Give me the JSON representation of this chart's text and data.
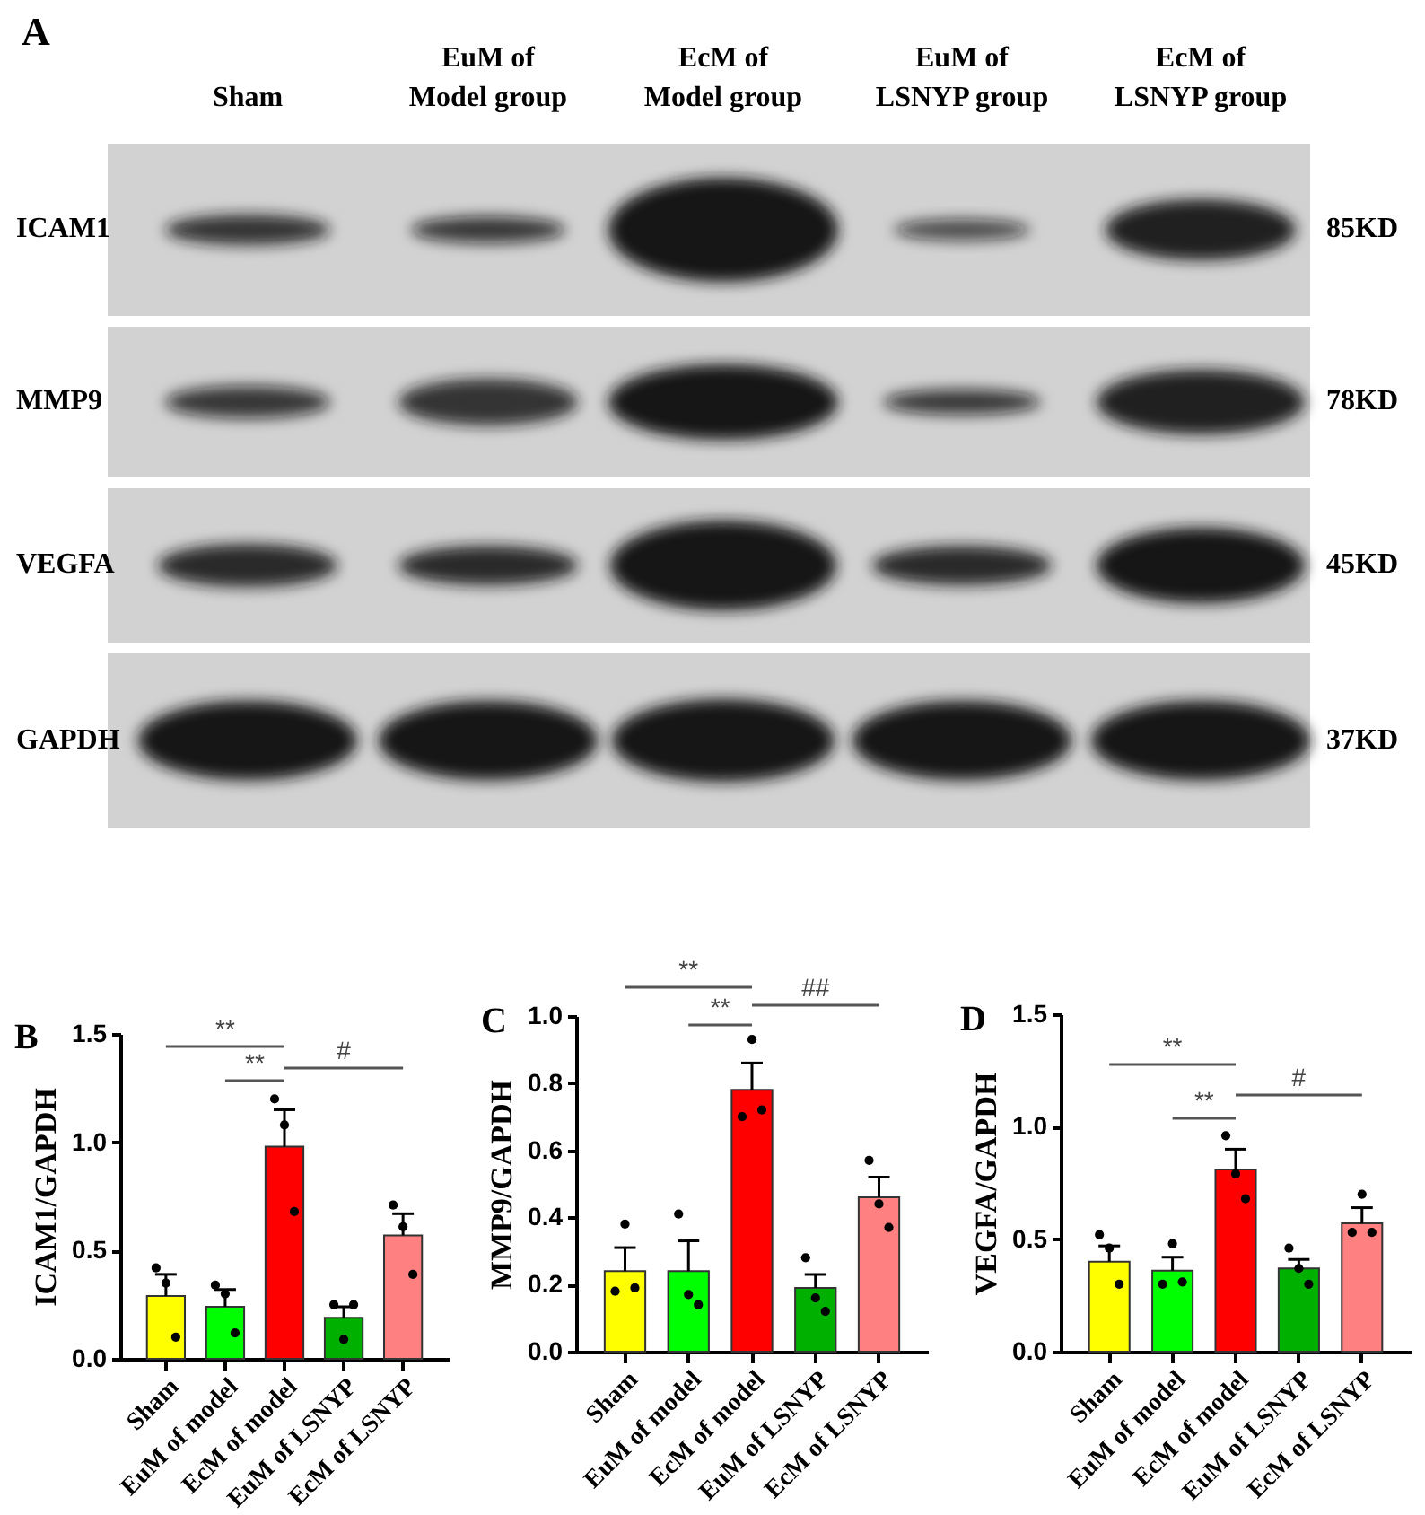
{
  "chart_data": [
    {
      "type": "other",
      "title": "A",
      "annotations": [
        "Sham",
        "EuM of Model group",
        "EcM of Model group",
        "EuM of LSNYP group",
        "EcM of LSNYP group",
        "ICAM1",
        "MMP9",
        "VEGFA",
        "GAPDH",
        "85KD",
        "78KD",
        "45KD",
        "37KD"
      ]
    },
    {
      "type": "bar",
      "title": "B",
      "ylabel": "ICAM1/GAPDH",
      "categories": [
        "Sham",
        "EuM of model",
        "EcM of model",
        "EuM of LSNYP",
        "EcM of LSNYP"
      ],
      "series": [
        {
          "type": "bar",
          "colors": [
            "#ffff00",
            "#00ff00",
            "#ff0000",
            "#00b000",
            "#ff8080"
          ],
          "values": [
            0.29,
            0.24,
            0.98,
            0.19,
            0.57
          ],
          "errors": [
            [
              0.29,
              0.39
            ],
            [
              0.24,
              0.32
            ],
            [
              0.98,
              1.15
            ],
            [
              0.19,
              0.24
            ],
            [
              0.57,
              0.67
            ]
          ]
        },
        {
          "type": "scatter",
          "color": "#000000",
          "x": [
            "Sham",
            "Sham",
            "Sham",
            "EuM of model",
            "EuM of model",
            "EuM of model",
            "EcM of model",
            "EcM of model",
            "EcM of model",
            "EuM of LSNYP",
            "EuM of LSNYP",
            "EuM of LSNYP",
            "EcM of LSNYP",
            "EcM of LSNYP",
            "EcM of LSNYP"
          ],
          "values": [
            0.42,
            0.35,
            0.1,
            0.34,
            0.3,
            0.12,
            1.2,
            1.08,
            0.68,
            0.25,
            0.09,
            0.25,
            0.71,
            0.61,
            0.39
          ]
        }
      ],
      "ylim": [
        0,
        1.5
      ],
      "yticks": [
        {
          "value": 0,
          "label": "0.0"
        },
        0.5,
        {
          "value": 1,
          "label": "1.0"
        },
        {
          "value": 1.5,
          "label": "1.5"
        }
      ],
      "marker": "circle",
      "annotations": [
        "**",
        "**",
        "#"
      ]
    },
    {
      "type": "bar",
      "title": "C",
      "ylabel": "MMP9/GAPDH",
      "categories": [
        "Sham",
        "EuM of model",
        "EcM of model",
        "EuM of LSNYP",
        "EcM of LSNYP"
      ],
      "series": [
        {
          "type": "bar",
          "colors": [
            "#ffff00",
            "#00ff00",
            "#ff0000",
            "#00b000",
            "#ff8080"
          ],
          "values": [
            0.24,
            0.24,
            0.78,
            0.19,
            0.46
          ],
          "errors": [
            [
              0.24,
              0.31
            ],
            [
              0.24,
              0.33
            ],
            [
              0.78,
              0.86
            ],
            [
              0.19,
              0.23
            ],
            [
              0.46,
              0.52
            ]
          ]
        },
        {
          "type": "scatter",
          "color": "#000000",
          "x": [
            "Sham",
            "Sham",
            "Sham",
            "EuM of model",
            "EuM of model",
            "EuM of model",
            "EcM of model",
            "EcM of model",
            "EcM of model",
            "EuM of LSNYP",
            "EuM of LSNYP",
            "EuM of LSNYP",
            "EcM of LSNYP",
            "EcM of LSNYP",
            "EcM of LSNYP"
          ],
          "values": [
            0.18,
            0.38,
            0.19,
            0.41,
            0.17,
            0.14,
            0.7,
            0.93,
            0.72,
            0.28,
            0.16,
            0.12,
            0.57,
            0.44,
            0.37
          ]
        }
      ],
      "ylim": [
        0,
        1
      ],
      "yticks": [
        {
          "value": 0,
          "label": "0.0"
        },
        0.2,
        0.4,
        0.6,
        0.8,
        {
          "value": 1,
          "label": "1.0"
        }
      ],
      "marker": "circle",
      "annotations": [
        "**",
        "**",
        "##"
      ]
    },
    {
      "type": "bar",
      "title": "D",
      "ylabel": "VEGFA/GAPDH",
      "categories": [
        "Sham",
        "EuM of model",
        "EcM of model",
        "EuM of LSNYP",
        "EcM of LSNYP"
      ],
      "series": [
        {
          "type": "bar",
          "colors": [
            "#ffff00",
            "#00ff00",
            "#ff0000",
            "#00b000",
            "#ff8080"
          ],
          "values": [
            0.4,
            0.36,
            0.81,
            0.37,
            0.57
          ],
          "errors": [
            [
              0.4,
              0.47
            ],
            [
              0.36,
              0.42
            ],
            [
              0.81,
              0.9
            ],
            [
              0.37,
              0.41
            ],
            [
              0.57,
              0.64
            ]
          ]
        },
        {
          "type": "scatter",
          "color": "#000000",
          "x": [
            "Sham",
            "Sham",
            "Sham",
            "EuM of model",
            "EuM of model",
            "EuM of model",
            "EcM of model",
            "EcM of model",
            "EcM of model",
            "EuM of LSNYP",
            "EuM of LSNYP",
            "EuM of LSNYP",
            "EcM of LSNYP",
            "EcM of LSNYP",
            "EcM of LSNYP"
          ],
          "values": [
            0.52,
            0.46,
            0.3,
            0.3,
            0.48,
            0.31,
            0.96,
            0.79,
            0.68,
            0.46,
            0.37,
            0.3,
            0.53,
            0.7,
            0.53
          ]
        }
      ],
      "ylim": [
        0,
        1.5
      ],
      "yticks": [
        {
          "value": 0,
          "label": "0.0"
        },
        0.5,
        {
          "value": 1,
          "label": "1.0"
        },
        {
          "value": 1.5,
          "label": "1.5"
        }
      ],
      "marker": "circle",
      "annotations": [
        "**",
        "**",
        "#"
      ]
    }
  ]
}
